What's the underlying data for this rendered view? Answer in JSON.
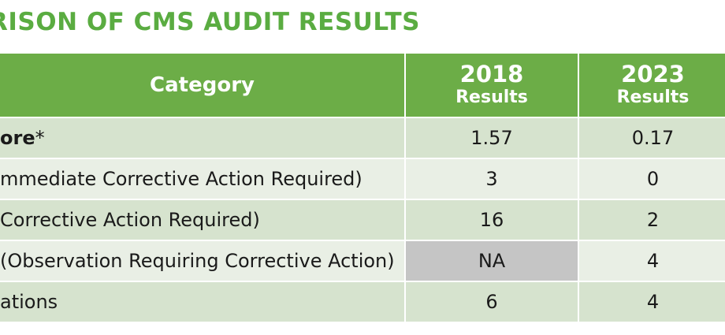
{
  "title": "RISON OF CMS AUDIT RESULTS",
  "table": {
    "headers": {
      "category": "Category",
      "col2018_year": "2018",
      "col2018_sub": "Results",
      "col2023_year": "2023",
      "col2023_sub": "Results"
    },
    "rows": [
      {
        "label_bold": "ore",
        "label_rest": "*",
        "v2018": "1.57",
        "v2023": "0.17"
      },
      {
        "label_bold": "",
        "label_rest": "mmediate Corrective Action Required)",
        "v2018": "3",
        "v2023": "0"
      },
      {
        "label_bold": "",
        "label_rest": "Corrective Action Required)",
        "v2018": "16",
        "v2023": "2"
      },
      {
        "label_bold": "",
        "label_rest": "(Observation Requiring Corrective Action)",
        "v2018": "NA",
        "v2023": "4"
      },
      {
        "label_bold": "",
        "label_rest": "ations",
        "v2018": "6",
        "v2023": "4"
      }
    ]
  },
  "colors": {
    "title": "#5aac41",
    "header_bg": "#6cad47",
    "row_dark": "#d6e3ce",
    "row_light": "#e9efe5",
    "na_cell": "#c5c5c5"
  }
}
